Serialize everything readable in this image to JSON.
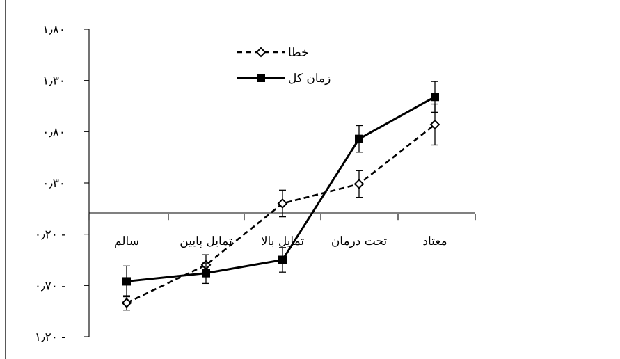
{
  "chart_data": {
    "type": "line",
    "categories": [
      "سالم",
      "تمایل پایین",
      "تمایل بالا",
      "تحت درمان",
      "معتاد"
    ],
    "ylim": [
      -1.2,
      1.8
    ],
    "yticks": [
      {
        "value": 1.8,
        "label": "۱٫۸۰"
      },
      {
        "value": 1.3,
        "label": "۱٫۳۰"
      },
      {
        "value": 0.8,
        "label": "۰٫۸۰"
      },
      {
        "value": 0.3,
        "label": "۰٫۳۰"
      },
      {
        "value": -0.2,
        "label": "۰٫۲۰ -"
      },
      {
        "value": -0.7,
        "label": "۰٫۷۰ -"
      },
      {
        "value": -1.2,
        "label": "۱٫۲۰ -"
      }
    ],
    "series": [
      {
        "name": "خطا",
        "style": "dashed",
        "marker": "diamond-open",
        "color": "#000000",
        "values": [
          -0.87,
          -0.5,
          0.1,
          0.29,
          0.87
        ],
        "error": [
          0.07,
          0.1,
          0.13,
          0.13,
          0.2
        ]
      },
      {
        "name": "زمان کل",
        "style": "solid",
        "marker": "square-filled",
        "color": "#000000",
        "values": [
          -0.66,
          -0.58,
          -0.45,
          0.73,
          1.14
        ],
        "error": [
          0.15,
          0.1,
          0.12,
          0.13,
          0.15
        ]
      }
    ],
    "legend_position": "top-center",
    "grid": false,
    "zero_line": true
  }
}
